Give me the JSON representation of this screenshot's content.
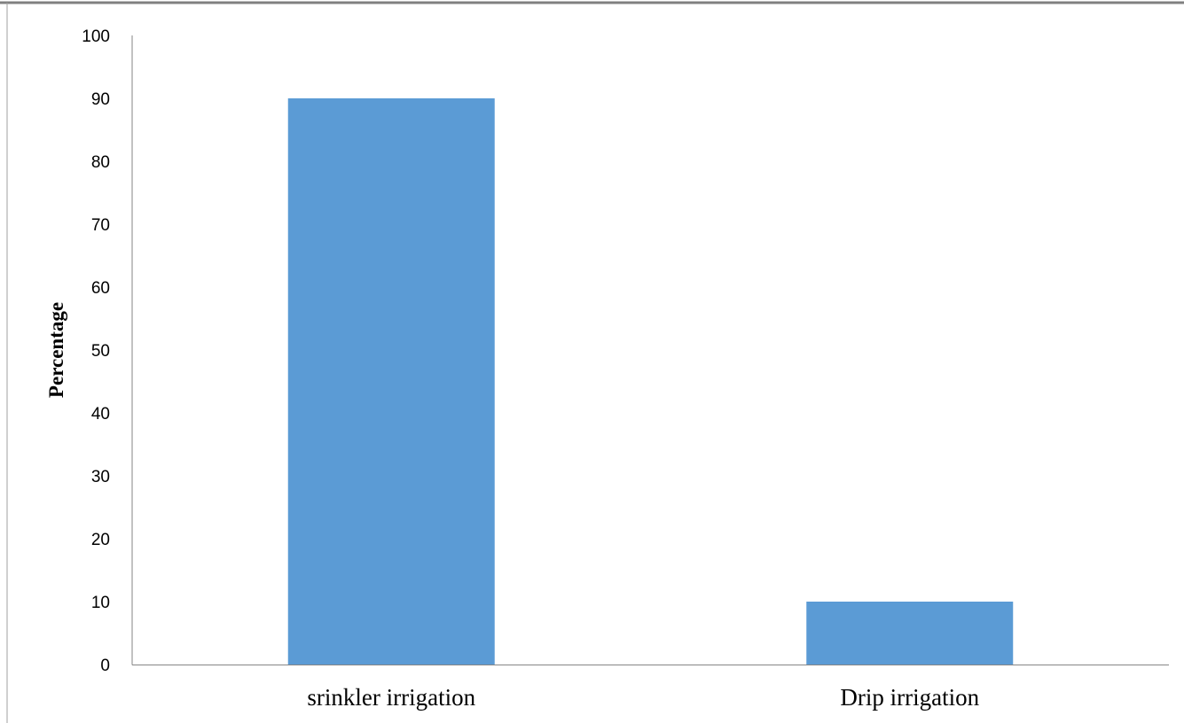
{
  "chart_data": {
    "type": "bar",
    "title": "",
    "xlabel": "",
    "ylabel": "Percentage",
    "categories": [
      "srinkler irrigation",
      "Drip irrigation"
    ],
    "values": [
      90,
      10
    ],
    "ylim": [
      0,
      100
    ],
    "yticks": [
      "0",
      "10",
      "20",
      "30",
      "40",
      "50",
      "60",
      "70",
      "80",
      "90",
      "100"
    ],
    "grid": false,
    "legend": "none",
    "colors": {
      "bar": "#5b9bd5",
      "axis": "#868686",
      "frame": "#808080"
    }
  }
}
